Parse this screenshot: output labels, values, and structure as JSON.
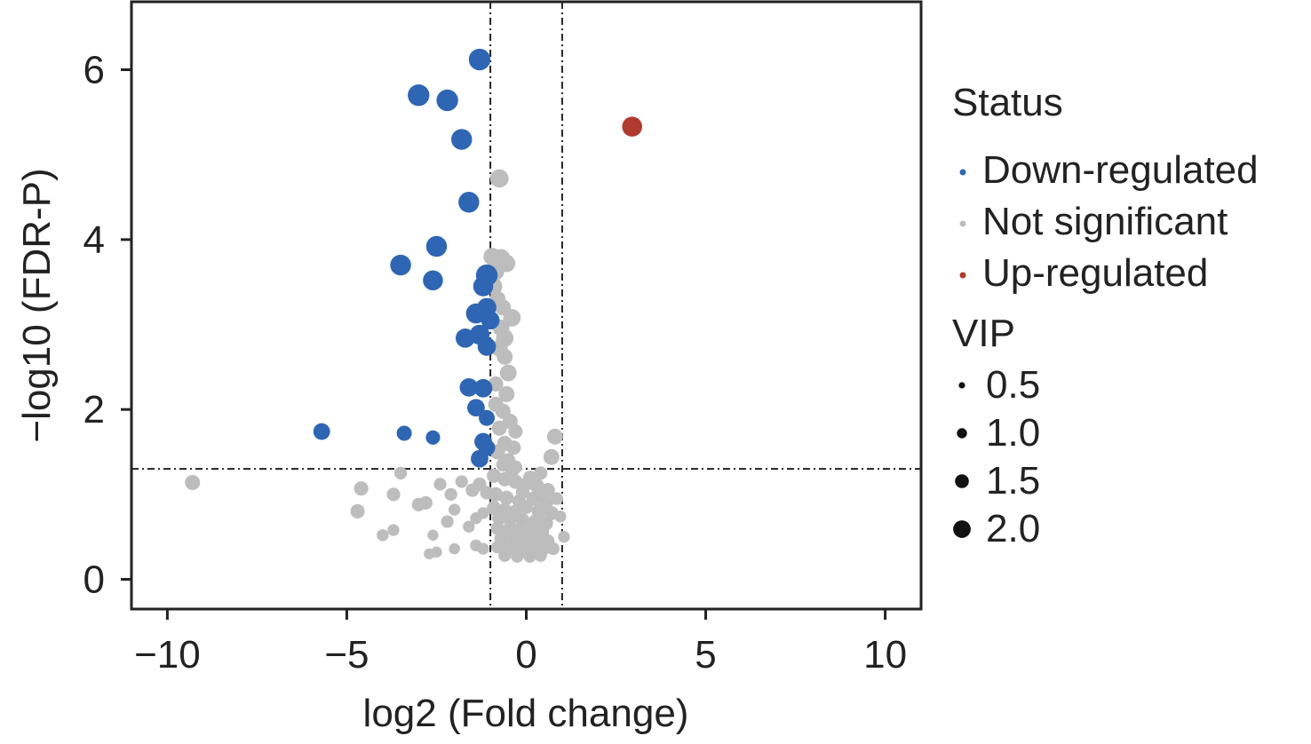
{
  "chart_data": {
    "type": "scatter",
    "title": "",
    "xlabel": "log2 (Fold change)",
    "ylabel": "−log10 (FDR-P)",
    "xlim": [
      -11,
      11
    ],
    "ylim": [
      -0.35,
      6.8
    ],
    "x_ticks": [
      -10,
      -5,
      0,
      5,
      10
    ],
    "x_tick_labels": [
      "−10",
      "−5",
      "0",
      "5",
      "10"
    ],
    "y_ticks": [
      0,
      2,
      4,
      6
    ],
    "y_tick_labels": [
      "0",
      "2",
      "4",
      "6"
    ],
    "grid": false,
    "thresholds": {
      "vlines": [
        -1,
        1
      ],
      "hline": 1.3
    },
    "colors": {
      "Down-regulated": "#2f66b3",
      "Not significant": "#bdbdbd",
      "Up-regulated": "#b03a2e",
      "threshold_line": "#222222",
      "legend_size_dot": "#111111"
    },
    "legend": {
      "status_title": "Status",
      "status_items": [
        "Down-regulated",
        "Not significant",
        "Up-regulated"
      ],
      "vip_title": "VIP",
      "vip_items": [
        {
          "label": "0.5",
          "value": 0.5
        },
        {
          "label": "1.0",
          "value": 1.0
        },
        {
          "label": "1.5",
          "value": 1.5
        },
        {
          "label": "2.0",
          "value": 2.0
        }
      ]
    },
    "series": [
      {
        "name": "Down-regulated",
        "points": [
          {
            "x": -1.3,
            "y": 6.12,
            "vip": 2.0
          },
          {
            "x": -3.0,
            "y": 5.7,
            "vip": 2.0
          },
          {
            "x": -2.2,
            "y": 5.64,
            "vip": 2.0
          },
          {
            "x": -1.8,
            "y": 5.18,
            "vip": 1.9
          },
          {
            "x": -1.6,
            "y": 4.44,
            "vip": 1.9
          },
          {
            "x": -2.5,
            "y": 3.92,
            "vip": 1.9
          },
          {
            "x": -3.5,
            "y": 3.7,
            "vip": 1.9
          },
          {
            "x": -2.6,
            "y": 3.52,
            "vip": 1.8
          },
          {
            "x": -1.1,
            "y": 3.58,
            "vip": 2.0
          },
          {
            "x": -1.2,
            "y": 3.45,
            "vip": 1.8
          },
          {
            "x": -1.4,
            "y": 3.13,
            "vip": 1.8
          },
          {
            "x": -1.1,
            "y": 3.2,
            "vip": 1.7
          },
          {
            "x": -1.0,
            "y": 3.05,
            "vip": 1.6
          },
          {
            "x": -1.7,
            "y": 2.84,
            "vip": 1.7
          },
          {
            "x": -1.3,
            "y": 2.88,
            "vip": 1.8
          },
          {
            "x": -1.1,
            "y": 2.74,
            "vip": 1.6
          },
          {
            "x": -1.6,
            "y": 2.26,
            "vip": 1.6
          },
          {
            "x": -1.2,
            "y": 2.25,
            "vip": 1.6
          },
          {
            "x": -1.4,
            "y": 2.02,
            "vip": 1.5
          },
          {
            "x": -1.1,
            "y": 1.9,
            "vip": 1.3
          },
          {
            "x": -5.7,
            "y": 1.74,
            "vip": 1.4
          },
          {
            "x": -3.4,
            "y": 1.72,
            "vip": 1.2
          },
          {
            "x": -2.6,
            "y": 1.67,
            "vip": 1.1
          },
          {
            "x": -1.2,
            "y": 1.62,
            "vip": 1.5
          },
          {
            "x": -1.1,
            "y": 1.55,
            "vip": 1.4
          },
          {
            "x": -1.3,
            "y": 1.42,
            "vip": 1.5
          }
        ]
      },
      {
        "name": "Not significant",
        "points": [
          {
            "x": -0.75,
            "y": 4.72,
            "vip": 1.6
          },
          {
            "x": -0.95,
            "y": 3.8,
            "vip": 1.5
          },
          {
            "x": -0.7,
            "y": 3.78,
            "vip": 1.6
          },
          {
            "x": -0.55,
            "y": 3.72,
            "vip": 1.5
          },
          {
            "x": -0.85,
            "y": 3.62,
            "vip": 1.4
          },
          {
            "x": -0.9,
            "y": 3.45,
            "vip": 1.4
          },
          {
            "x": -0.8,
            "y": 3.3,
            "vip": 1.3
          },
          {
            "x": -0.65,
            "y": 3.2,
            "vip": 1.3
          },
          {
            "x": -0.4,
            "y": 3.08,
            "vip": 1.5
          },
          {
            "x": -0.7,
            "y": 2.96,
            "vip": 1.4
          },
          {
            "x": -0.6,
            "y": 2.84,
            "vip": 1.5
          },
          {
            "x": -0.75,
            "y": 2.72,
            "vip": 1.4
          },
          {
            "x": -0.6,
            "y": 2.62,
            "vip": 1.3
          },
          {
            "x": -0.5,
            "y": 2.43,
            "vip": 1.4
          },
          {
            "x": -0.85,
            "y": 2.3,
            "vip": 1.2
          },
          {
            "x": -0.55,
            "y": 2.18,
            "vip": 1.3
          },
          {
            "x": -0.85,
            "y": 2.06,
            "vip": 1.2
          },
          {
            "x": -0.65,
            "y": 1.98,
            "vip": 1.2
          },
          {
            "x": -0.45,
            "y": 1.86,
            "vip": 1.2
          },
          {
            "x": -0.75,
            "y": 1.78,
            "vip": 1.2
          },
          {
            "x": -0.3,
            "y": 1.74,
            "vip": 1.1
          },
          {
            "x": 0.8,
            "y": 1.68,
            "vip": 1.3
          },
          {
            "x": -0.6,
            "y": 1.6,
            "vip": 1.2
          },
          {
            "x": -0.35,
            "y": 1.55,
            "vip": 1.1
          },
          {
            "x": -0.8,
            "y": 1.5,
            "vip": 1.2
          },
          {
            "x": 0.7,
            "y": 1.44,
            "vip": 1.3
          },
          {
            "x": -0.5,
            "y": 1.4,
            "vip": 1.1
          },
          {
            "x": -0.65,
            "y": 1.35,
            "vip": 1.0
          },
          {
            "x": -0.3,
            "y": 1.32,
            "vip": 1.0
          },
          {
            "x": -9.3,
            "y": 1.14,
            "vip": 1.2
          },
          {
            "x": -4.6,
            "y": 1.07,
            "vip": 1.1
          },
          {
            "x": -3.7,
            "y": 1.0,
            "vip": 1.0
          },
          {
            "x": -4.7,
            "y": 0.8,
            "vip": 1.1
          },
          {
            "x": -3.5,
            "y": 1.25,
            "vip": 0.9
          },
          {
            "x": -3.0,
            "y": 0.88,
            "vip": 1.0
          },
          {
            "x": -2.8,
            "y": 0.9,
            "vip": 1.0
          },
          {
            "x": -2.4,
            "y": 1.12,
            "vip": 0.9
          },
          {
            "x": -2.1,
            "y": 1.0,
            "vip": 0.9
          },
          {
            "x": -1.8,
            "y": 1.15,
            "vip": 0.9
          },
          {
            "x": -1.5,
            "y": 1.05,
            "vip": 1.0
          },
          {
            "x": -1.3,
            "y": 1.12,
            "vip": 1.0
          },
          {
            "x": -1.1,
            "y": 1.02,
            "vip": 1.0
          },
          {
            "x": -2.2,
            "y": 0.68,
            "vip": 0.9
          },
          {
            "x": -2.0,
            "y": 0.82,
            "vip": 0.8
          },
          {
            "x": -1.6,
            "y": 0.62,
            "vip": 0.8
          },
          {
            "x": -1.4,
            "y": 0.72,
            "vip": 0.8
          },
          {
            "x": -1.2,
            "y": 0.78,
            "vip": 0.8
          },
          {
            "x": -4.0,
            "y": 0.52,
            "vip": 0.8
          },
          {
            "x": -3.7,
            "y": 0.58,
            "vip": 0.8
          },
          {
            "x": -2.6,
            "y": 0.52,
            "vip": 0.7
          },
          {
            "x": -2.7,
            "y": 0.3,
            "vip": 0.7
          },
          {
            "x": -2.5,
            "y": 0.32,
            "vip": 0.7
          },
          {
            "x": -2.0,
            "y": 0.36,
            "vip": 0.7
          },
          {
            "x": -1.4,
            "y": 0.4,
            "vip": 0.8
          },
          {
            "x": -1.2,
            "y": 0.36,
            "vip": 0.8
          },
          {
            "x": -0.9,
            "y": 1.22,
            "vip": 1.1
          },
          {
            "x": -0.6,
            "y": 1.18,
            "vip": 1.1
          },
          {
            "x": -0.3,
            "y": 1.15,
            "vip": 1.1
          },
          {
            "x": 0.0,
            "y": 1.12,
            "vip": 1.0
          },
          {
            "x": 0.3,
            "y": 1.1,
            "vip": 1.1
          },
          {
            "x": 0.6,
            "y": 1.05,
            "vip": 1.1
          },
          {
            "x": -0.85,
            "y": 1.0,
            "vip": 1.1
          },
          {
            "x": -0.55,
            "y": 0.96,
            "vip": 1.1
          },
          {
            "x": -0.2,
            "y": 0.92,
            "vip": 1.0
          },
          {
            "x": 0.2,
            "y": 0.95,
            "vip": 1.1
          },
          {
            "x": 0.55,
            "y": 0.9,
            "vip": 1.1
          },
          {
            "x": -0.9,
            "y": 0.84,
            "vip": 1.1
          },
          {
            "x": -0.6,
            "y": 0.82,
            "vip": 1.0
          },
          {
            "x": -0.3,
            "y": 0.8,
            "vip": 1.0
          },
          {
            "x": 0.0,
            "y": 0.85,
            "vip": 1.0
          },
          {
            "x": 0.35,
            "y": 0.8,
            "vip": 1.1
          },
          {
            "x": 0.7,
            "y": 0.78,
            "vip": 1.1
          },
          {
            "x": -0.75,
            "y": 0.72,
            "vip": 1.1
          },
          {
            "x": -0.45,
            "y": 0.7,
            "vip": 1.0
          },
          {
            "x": -0.1,
            "y": 0.7,
            "vip": 1.0
          },
          {
            "x": 0.25,
            "y": 0.68,
            "vip": 1.1
          },
          {
            "x": 0.55,
            "y": 0.66,
            "vip": 1.1
          },
          {
            "x": -0.8,
            "y": 0.6,
            "vip": 1.0
          },
          {
            "x": -0.5,
            "y": 0.58,
            "vip": 1.0
          },
          {
            "x": -0.2,
            "y": 0.58,
            "vip": 1.1
          },
          {
            "x": 0.15,
            "y": 0.58,
            "vip": 1.1
          },
          {
            "x": 0.45,
            "y": 0.56,
            "vip": 1.0
          },
          {
            "x": -0.7,
            "y": 0.48,
            "vip": 1.0
          },
          {
            "x": -0.35,
            "y": 0.47,
            "vip": 1.0
          },
          {
            "x": 0.0,
            "y": 0.46,
            "vip": 1.1
          },
          {
            "x": 0.3,
            "y": 0.46,
            "vip": 1.0
          },
          {
            "x": 0.6,
            "y": 0.45,
            "vip": 1.0
          },
          {
            "x": -0.8,
            "y": 0.38,
            "vip": 0.9
          },
          {
            "x": -0.5,
            "y": 0.36,
            "vip": 1.0
          },
          {
            "x": -0.15,
            "y": 0.36,
            "vip": 1.0
          },
          {
            "x": 0.2,
            "y": 0.35,
            "vip": 1.0
          },
          {
            "x": 0.5,
            "y": 0.36,
            "vip": 0.9
          },
          {
            "x": -0.6,
            "y": 0.28,
            "vip": 0.9
          },
          {
            "x": -0.25,
            "y": 0.27,
            "vip": 0.9
          },
          {
            "x": 0.1,
            "y": 0.27,
            "vip": 0.9
          },
          {
            "x": 0.4,
            "y": 0.28,
            "vip": 0.9
          },
          {
            "x": 0.75,
            "y": 0.36,
            "vip": 0.9
          },
          {
            "x": 1.05,
            "y": 0.5,
            "vip": 0.8
          },
          {
            "x": 0.95,
            "y": 0.74,
            "vip": 0.8
          },
          {
            "x": 0.85,
            "y": 0.95,
            "vip": 0.9
          },
          {
            "x": -0.4,
            "y": 1.27,
            "vip": 1.0
          },
          {
            "x": 0.1,
            "y": 1.2,
            "vip": 1.0
          },
          {
            "x": 0.4,
            "y": 1.25,
            "vip": 1.0
          },
          {
            "x": -0.1,
            "y": 1.03,
            "vip": 1.0
          },
          {
            "x": 0.45,
            "y": 1.0,
            "vip": 1.0
          }
        ]
      },
      {
        "name": "Up-regulated",
        "points": [
          {
            "x": 2.95,
            "y": 5.33,
            "vip": 1.8
          }
        ]
      }
    ]
  }
}
